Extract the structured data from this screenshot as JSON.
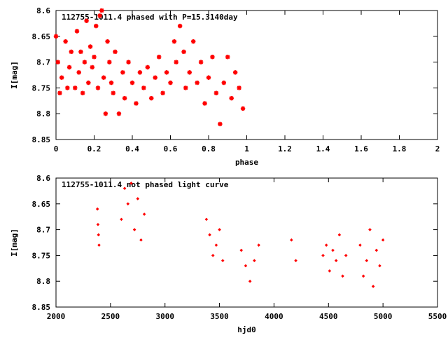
{
  "colors": {
    "points": "#ff0000",
    "axes": "#000000",
    "background": "#ffffff"
  },
  "chart_data": [
    {
      "type": "scatter",
      "title": "112755-1011.4 phased with P=15.3140day",
      "xlabel": "phase",
      "ylabel": "I[mag]",
      "xlim": [
        0,
        2
      ],
      "ylim": [
        8.6,
        8.85
      ],
      "y_inverted": true,
      "xticks": [
        "0",
        "0.2",
        "0.4",
        "0.6",
        "0.8",
        "1",
        "1.2",
        "1.4",
        "1.6",
        "1.8",
        "2"
      ],
      "yticks": [
        "8.6",
        "8.65",
        "8.7",
        "8.75",
        "8.8",
        "8.85"
      ],
      "marker": "star",
      "series": [
        {
          "x": [
            0.0,
            0.01,
            0.02,
            0.03,
            0.05,
            0.06,
            0.07,
            0.08,
            0.1,
            0.11,
            0.12,
            0.13,
            0.14,
            0.15,
            0.16,
            0.17,
            0.18,
            0.19,
            0.2,
            0.21,
            0.22,
            0.23,
            0.24,
            0.25,
            0.26,
            0.27,
            0.28,
            0.29,
            0.3,
            0.31,
            0.33,
            0.35,
            0.36,
            0.38,
            0.4,
            0.42,
            0.44,
            0.46,
            0.48,
            0.5,
            0.52,
            0.54,
            0.56,
            0.58,
            0.6,
            0.62,
            0.63,
            0.65,
            0.67,
            0.68,
            0.7,
            0.72,
            0.74,
            0.76,
            0.78,
            0.8,
            0.82,
            0.84,
            0.86,
            0.88,
            0.9,
            0.92,
            0.94,
            0.96,
            0.98
          ],
          "y": [
            8.65,
            8.7,
            8.76,
            8.73,
            8.66,
            8.75,
            8.71,
            8.68,
            8.75,
            8.64,
            8.72,
            8.68,
            8.76,
            8.7,
            8.62,
            8.74,
            8.67,
            8.71,
            8.69,
            8.63,
            8.75,
            8.61,
            8.6,
            8.73,
            8.8,
            8.66,
            8.7,
            8.74,
            8.76,
            8.68,
            8.8,
            8.72,
            8.77,
            8.7,
            8.74,
            8.78,
            8.72,
            8.75,
            8.71,
            8.77,
            8.73,
            8.69,
            8.76,
            8.72,
            8.74,
            8.66,
            8.7,
            8.63,
            8.68,
            8.75,
            8.72,
            8.66,
            8.74,
            8.7,
            8.78,
            8.73,
            8.69,
            8.76,
            8.82,
            8.74,
            8.69,
            8.77,
            8.72,
            8.75,
            8.79
          ]
        }
      ]
    },
    {
      "type": "scatter",
      "title": "112755-1011.4 not phased light curve",
      "xlabel": "hjd0",
      "ylabel": "I[mag]",
      "xlim": [
        2000,
        5500
      ],
      "ylim": [
        8.6,
        8.85
      ],
      "y_inverted": true,
      "xticks": [
        "2000",
        "2500",
        "3000",
        "3500",
        "4000",
        "4500",
        "5000",
        "5500"
      ],
      "yticks": [
        "8.6",
        "8.65",
        "8.7",
        "8.75",
        "8.8",
        "8.85"
      ],
      "marker": "diamond",
      "series": [
        {
          "x": [
            2380,
            2385,
            2390,
            2395,
            2600,
            2630,
            2660,
            2690,
            2720,
            2750,
            2780,
            2810,
            3380,
            3410,
            3440,
            3470,
            3500,
            3530,
            3700,
            3740,
            3780,
            3820,
            3860,
            4160,
            4200,
            4450,
            4480,
            4510,
            4540,
            4570,
            4600,
            4630,
            4660,
            4790,
            4820,
            4850,
            4880,
            4910,
            4940,
            4970,
            5000
          ],
          "y": [
            8.66,
            8.69,
            8.71,
            8.73,
            8.68,
            8.62,
            8.65,
            8.61,
            8.7,
            8.64,
            8.72,
            8.67,
            8.68,
            8.71,
            8.75,
            8.73,
            8.7,
            8.76,
            8.74,
            8.77,
            8.8,
            8.76,
            8.73,
            8.72,
            8.76,
            8.75,
            8.73,
            8.78,
            8.74,
            8.76,
            8.71,
            8.79,
            8.75,
            8.73,
            8.79,
            8.76,
            8.7,
            8.81,
            8.74,
            8.77,
            8.72
          ]
        }
      ]
    }
  ]
}
